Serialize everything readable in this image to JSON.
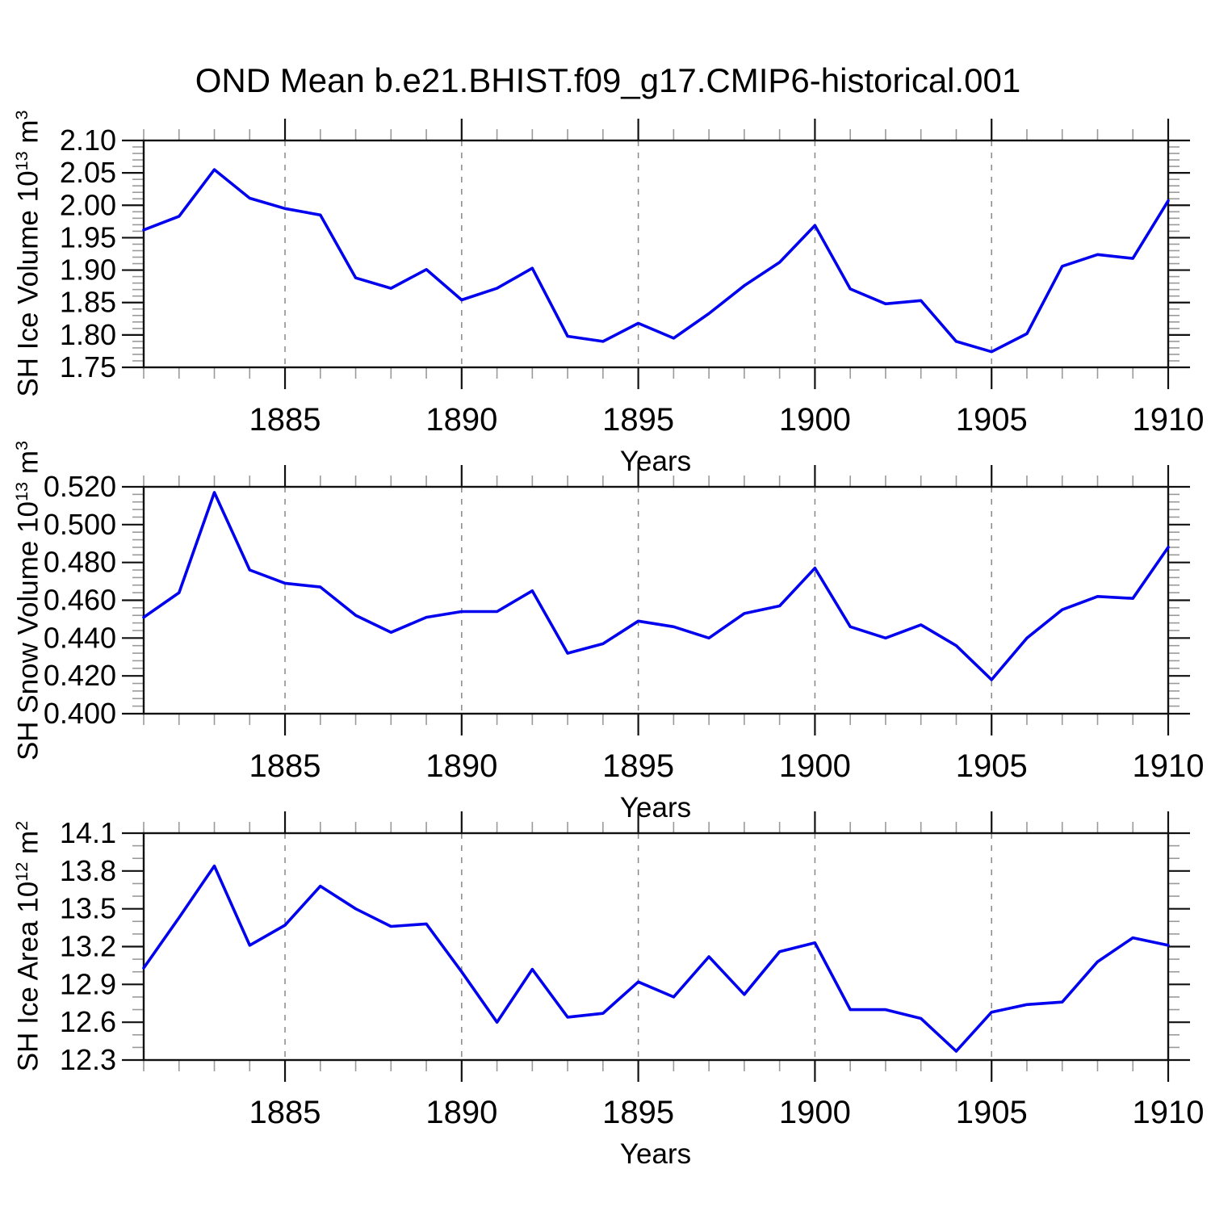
{
  "title": "OND Mean b.e21.BHIST.f09_g17.CMIP6-historical.001",
  "line_color": "#0000ee",
  "x_axis": {
    "label": "Years",
    "start": 1881,
    "end": 1910,
    "years": [
      1881,
      1882,
      1883,
      1884,
      1885,
      1886,
      1887,
      1888,
      1889,
      1890,
      1891,
      1892,
      1893,
      1894,
      1895,
      1896,
      1897,
      1898,
      1899,
      1900,
      1901,
      1902,
      1903,
      1904,
      1905,
      1906,
      1907,
      1908,
      1909,
      1910
    ],
    "major_ticks": [
      1885,
      1890,
      1895,
      1900,
      1905,
      1910
    ],
    "tick_labels": [
      "1885",
      "1890",
      "1895",
      "1900",
      "1905",
      "1910"
    ],
    "gridline_years": [
      1885,
      1890,
      1895,
      1900,
      1905
    ],
    "minor_step": 1
  },
  "chart_data": [
    {
      "type": "line",
      "ylabel": "SH Ice Volume 10^13 m^3",
      "ylabel_parts": {
        "base": "SH Ice Volume 10",
        "sup1": "13",
        "mid": " m",
        "sup2": "3"
      },
      "xlabel": "Years",
      "ylim": [
        1.75,
        2.1
      ],
      "ytick_step": 0.05,
      "yminor_step": 0.01,
      "ydecimals": 2,
      "ytick_labels": [
        "2.10",
        "2.05",
        "2.00",
        "1.95",
        "1.90",
        "1.85",
        "1.80",
        "1.75"
      ],
      "values": [
        1.962,
        1.983,
        2.055,
        2.011,
        1.995,
        1.985,
        1.888,
        1.872,
        1.901,
        1.854,
        1.872,
        1.903,
        1.798,
        1.79,
        1.818,
        1.795,
        1.833,
        1.876,
        1.912,
        1.969,
        1.871,
        1.848,
        1.853,
        1.79,
        1.774,
        1.802,
        1.906,
        1.924,
        1.918,
        2.007
      ],
      "grid": true,
      "legend": "none"
    },
    {
      "type": "line",
      "ylabel": "SH Snow Volume 10^13 m^3",
      "ylabel_parts": {
        "base": "SH Snow Volume 10",
        "sup1": "13",
        "mid": " m",
        "sup2": "3"
      },
      "xlabel": "Years",
      "ylim": [
        0.4,
        0.52
      ],
      "ytick_step": 0.02,
      "yminor_step": 0.004,
      "ydecimals": 3,
      "ytick_labels": [
        "0.520",
        "0.500",
        "0.480",
        "0.460",
        "0.440",
        "0.420",
        "0.400"
      ],
      "values": [
        0.451,
        0.464,
        0.517,
        0.476,
        0.469,
        0.467,
        0.452,
        0.443,
        0.451,
        0.454,
        0.454,
        0.465,
        0.432,
        0.437,
        0.449,
        0.446,
        0.44,
        0.453,
        0.457,
        0.477,
        0.446,
        0.44,
        0.447,
        0.436,
        0.418,
        0.44,
        0.455,
        0.462,
        0.461,
        0.488
      ],
      "grid": true,
      "legend": "none"
    },
    {
      "type": "line",
      "ylabel": "SH Ice Area 10^12 m^2",
      "ylabel_parts": {
        "base": "SH Ice Area 10",
        "sup1": "12",
        "mid": " m",
        "sup2": "2"
      },
      "xlabel": "Years",
      "ylim": [
        12.3,
        14.1
      ],
      "ytick_step": 0.3,
      "yminor_step": 0.1,
      "ydecimals": 1,
      "ytick_labels": [
        "14.1",
        "13.8",
        "13.5",
        "13.2",
        "12.9",
        "12.6",
        "12.3"
      ],
      "values": [
        13.03,
        13.43,
        13.84,
        13.21,
        13.37,
        13.68,
        13.5,
        13.36,
        13.38,
        13.0,
        12.6,
        13.02,
        12.64,
        12.67,
        12.92,
        12.8,
        13.12,
        12.82,
        13.16,
        13.23,
        12.7,
        12.7,
        12.63,
        12.37,
        12.68,
        12.74,
        12.76,
        13.08,
        13.27,
        13.21
      ],
      "grid": true,
      "legend": "none"
    }
  ]
}
